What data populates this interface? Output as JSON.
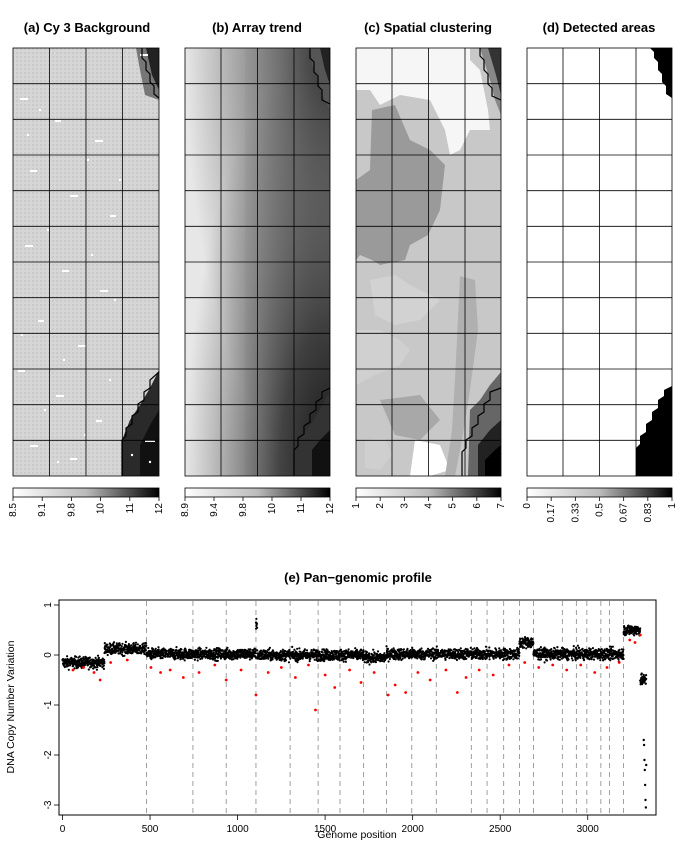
{
  "figure": {
    "panels": [
      {
        "id": "a",
        "title": "(a) Cy 3 Background",
        "colorbar_ticks": [
          "8.5",
          "9.1",
          "9.8",
          "10",
          "11",
          "12"
        ]
      },
      {
        "id": "b",
        "title": "(b) Array trend",
        "colorbar_ticks": [
          "8.9",
          "9.4",
          "9.8",
          "10",
          "11",
          "12"
        ]
      },
      {
        "id": "c",
        "title": "(c) Spatial clustering",
        "colorbar_ticks": [
          "1",
          "2",
          "3",
          "4",
          "5",
          "6",
          "7"
        ]
      },
      {
        "id": "d",
        "title": "(d) Detected areas",
        "colorbar_ticks": [
          "0",
          "0.17",
          "0.33",
          "0.5",
          "0.67",
          "0.83",
          "1"
        ]
      }
    ]
  },
  "chart_data": [
    {
      "type": "heatmap",
      "title": "(a) Cy 3 Background",
      "grid_layout": {
        "columns": 4,
        "rows": 12
      },
      "colorbar_ticks": [
        8.5,
        9.1,
        9.8,
        10,
        11,
        12
      ],
      "value_range": [
        8.5,
        12.2
      ],
      "colormap": [
        "#ffffff",
        "#000000"
      ]
    },
    {
      "type": "heatmap",
      "title": "(b) Array trend",
      "grid_layout": {
        "columns": 4,
        "rows": 12
      },
      "colorbar_ticks": [
        8.9,
        9.4,
        9.8,
        10,
        11,
        12
      ],
      "value_range": [
        8.9,
        12.2
      ],
      "colormap": [
        "#ffffff",
        "#000000"
      ]
    },
    {
      "type": "heatmap",
      "title": "(c) Spatial clustering",
      "grid_layout": {
        "columns": 4,
        "rows": 12
      },
      "colorbar_ticks": [
        1,
        2,
        3,
        4,
        5,
        6,
        7
      ],
      "value_range": [
        1,
        7
      ],
      "colormap": [
        "#ffffff",
        "#000000"
      ]
    },
    {
      "type": "heatmap",
      "title": "(d) Detected areas",
      "grid_layout": {
        "columns": 4,
        "rows": 12
      },
      "colorbar_ticks": [
        0,
        0.17,
        0.33,
        0.5,
        0.67,
        0.83,
        1
      ],
      "value_range": [
        0,
        1
      ],
      "colormap": [
        "#ffffff",
        "#000000"
      ]
    },
    {
      "type": "scatter",
      "title": "(e) Pan−genomic profile",
      "xlabel": "Genome position",
      "ylabel": "DNA Copy Number Variation",
      "xlim": [
        -20,
        3390
      ],
      "ylim": [
        -3.2,
        1.1
      ],
      "x_ticks": [
        0,
        500,
        1000,
        1500,
        2000,
        2500,
        3000
      ],
      "y_ticks": [
        1,
        0,
        -1,
        -2,
        -3
      ],
      "grid": false,
      "chromosome_boundaries": [
        480,
        745,
        935,
        1105,
        1300,
        1460,
        1585,
        1720,
        1850,
        1995,
        2135,
        2335,
        2425,
        2520,
        2610,
        2690,
        2855,
        2935,
        2995,
        3075,
        3125,
        3205
      ],
      "series": [
        {
          "color": "#000000",
          "segments": [
            {
              "x": [
                0,
                240
              ],
              "mean": -0.15
            },
            {
              "x": [
                240,
                480
              ],
              "mean": 0.12
            },
            {
              "x": [
                480,
                1105
              ],
              "mean": 0.02
            },
            {
              "x": [
                1105,
                1112
              ],
              "mean": 0.62
            },
            {
              "x": [
                1112,
                1720
              ],
              "mean": 0.0
            },
            {
              "x": [
                1720,
                1850
              ],
              "mean": -0.05
            },
            {
              "x": [
                1850,
                2610
              ],
              "mean": 0.02
            },
            {
              "x": [
                2610,
                2690
              ],
              "mean": 0.25
            },
            {
              "x": [
                2690,
                3205
              ],
              "mean": 0.02
            },
            {
              "x": [
                3205,
                3300
              ],
              "mean": 0.5
            },
            {
              "x": [
                3300,
                3335
              ],
              "mean": -0.5
            }
          ],
          "extreme_points": [
            {
              "x": 3320,
              "y": -1.7
            },
            {
              "x": 3322,
              "y": -1.8
            },
            {
              "x": 3324,
              "y": -2.1
            },
            {
              "x": 3326,
              "y": -2.3
            },
            {
              "x": 3328,
              "y": -2.6
            },
            {
              "x": 3330,
              "y": -2.9
            },
            {
              "x": 3332,
              "y": -3.05
            },
            {
              "x": 3334,
              "y": -2.2
            }
          ]
        },
        {
          "color": "#ff0000",
          "points": [
            {
              "x": 60,
              "y": -0.3
            },
            {
              "x": 120,
              "y": -0.25
            },
            {
              "x": 180,
              "y": -0.35
            },
            {
              "x": 215,
              "y": -0.5
            },
            {
              "x": 275,
              "y": -0.15
            },
            {
              "x": 370,
              "y": -0.1
            },
            {
              "x": 505,
              "y": -0.25
            },
            {
              "x": 560,
              "y": -0.35
            },
            {
              "x": 615,
              "y": -0.3
            },
            {
              "x": 690,
              "y": -0.45
            },
            {
              "x": 780,
              "y": -0.35
            },
            {
              "x": 870,
              "y": -0.2
            },
            {
              "x": 935,
              "y": -0.5
            },
            {
              "x": 1020,
              "y": -0.3
            },
            {
              "x": 1105,
              "y": -0.8
            },
            {
              "x": 1175,
              "y": -0.35
            },
            {
              "x": 1250,
              "y": -0.25
            },
            {
              "x": 1330,
              "y": -0.45
            },
            {
              "x": 1405,
              "y": -0.2
            },
            {
              "x": 1445,
              "y": -1.1
            },
            {
              "x": 1500,
              "y": -0.4
            },
            {
              "x": 1555,
              "y": -0.65
            },
            {
              "x": 1640,
              "y": -0.3
            },
            {
              "x": 1705,
              "y": -0.55
            },
            {
              "x": 1780,
              "y": -0.35
            },
            {
              "x": 1860,
              "y": -0.8
            },
            {
              "x": 1900,
              "y": -0.6
            },
            {
              "x": 1960,
              "y": -0.75
            },
            {
              "x": 2030,
              "y": -0.35
            },
            {
              "x": 2100,
              "y": -0.5
            },
            {
              "x": 2190,
              "y": -0.3
            },
            {
              "x": 2255,
              "y": -0.75
            },
            {
              "x": 2305,
              "y": -0.45
            },
            {
              "x": 2380,
              "y": -0.3
            },
            {
              "x": 2460,
              "y": -0.4
            },
            {
              "x": 2550,
              "y": -0.2
            },
            {
              "x": 2640,
              "y": -0.15
            },
            {
              "x": 2720,
              "y": -0.25
            },
            {
              "x": 2800,
              "y": -0.2
            },
            {
              "x": 2880,
              "y": -0.3
            },
            {
              "x": 2960,
              "y": -0.2
            },
            {
              "x": 3040,
              "y": -0.35
            },
            {
              "x": 3110,
              "y": -0.25
            },
            {
              "x": 3180,
              "y": -0.15
            },
            {
              "x": 3240,
              "y": 0.3
            },
            {
              "x": 3270,
              "y": 0.25
            },
            {
              "x": 3300,
              "y": 0.4
            }
          ]
        }
      ]
    }
  ]
}
